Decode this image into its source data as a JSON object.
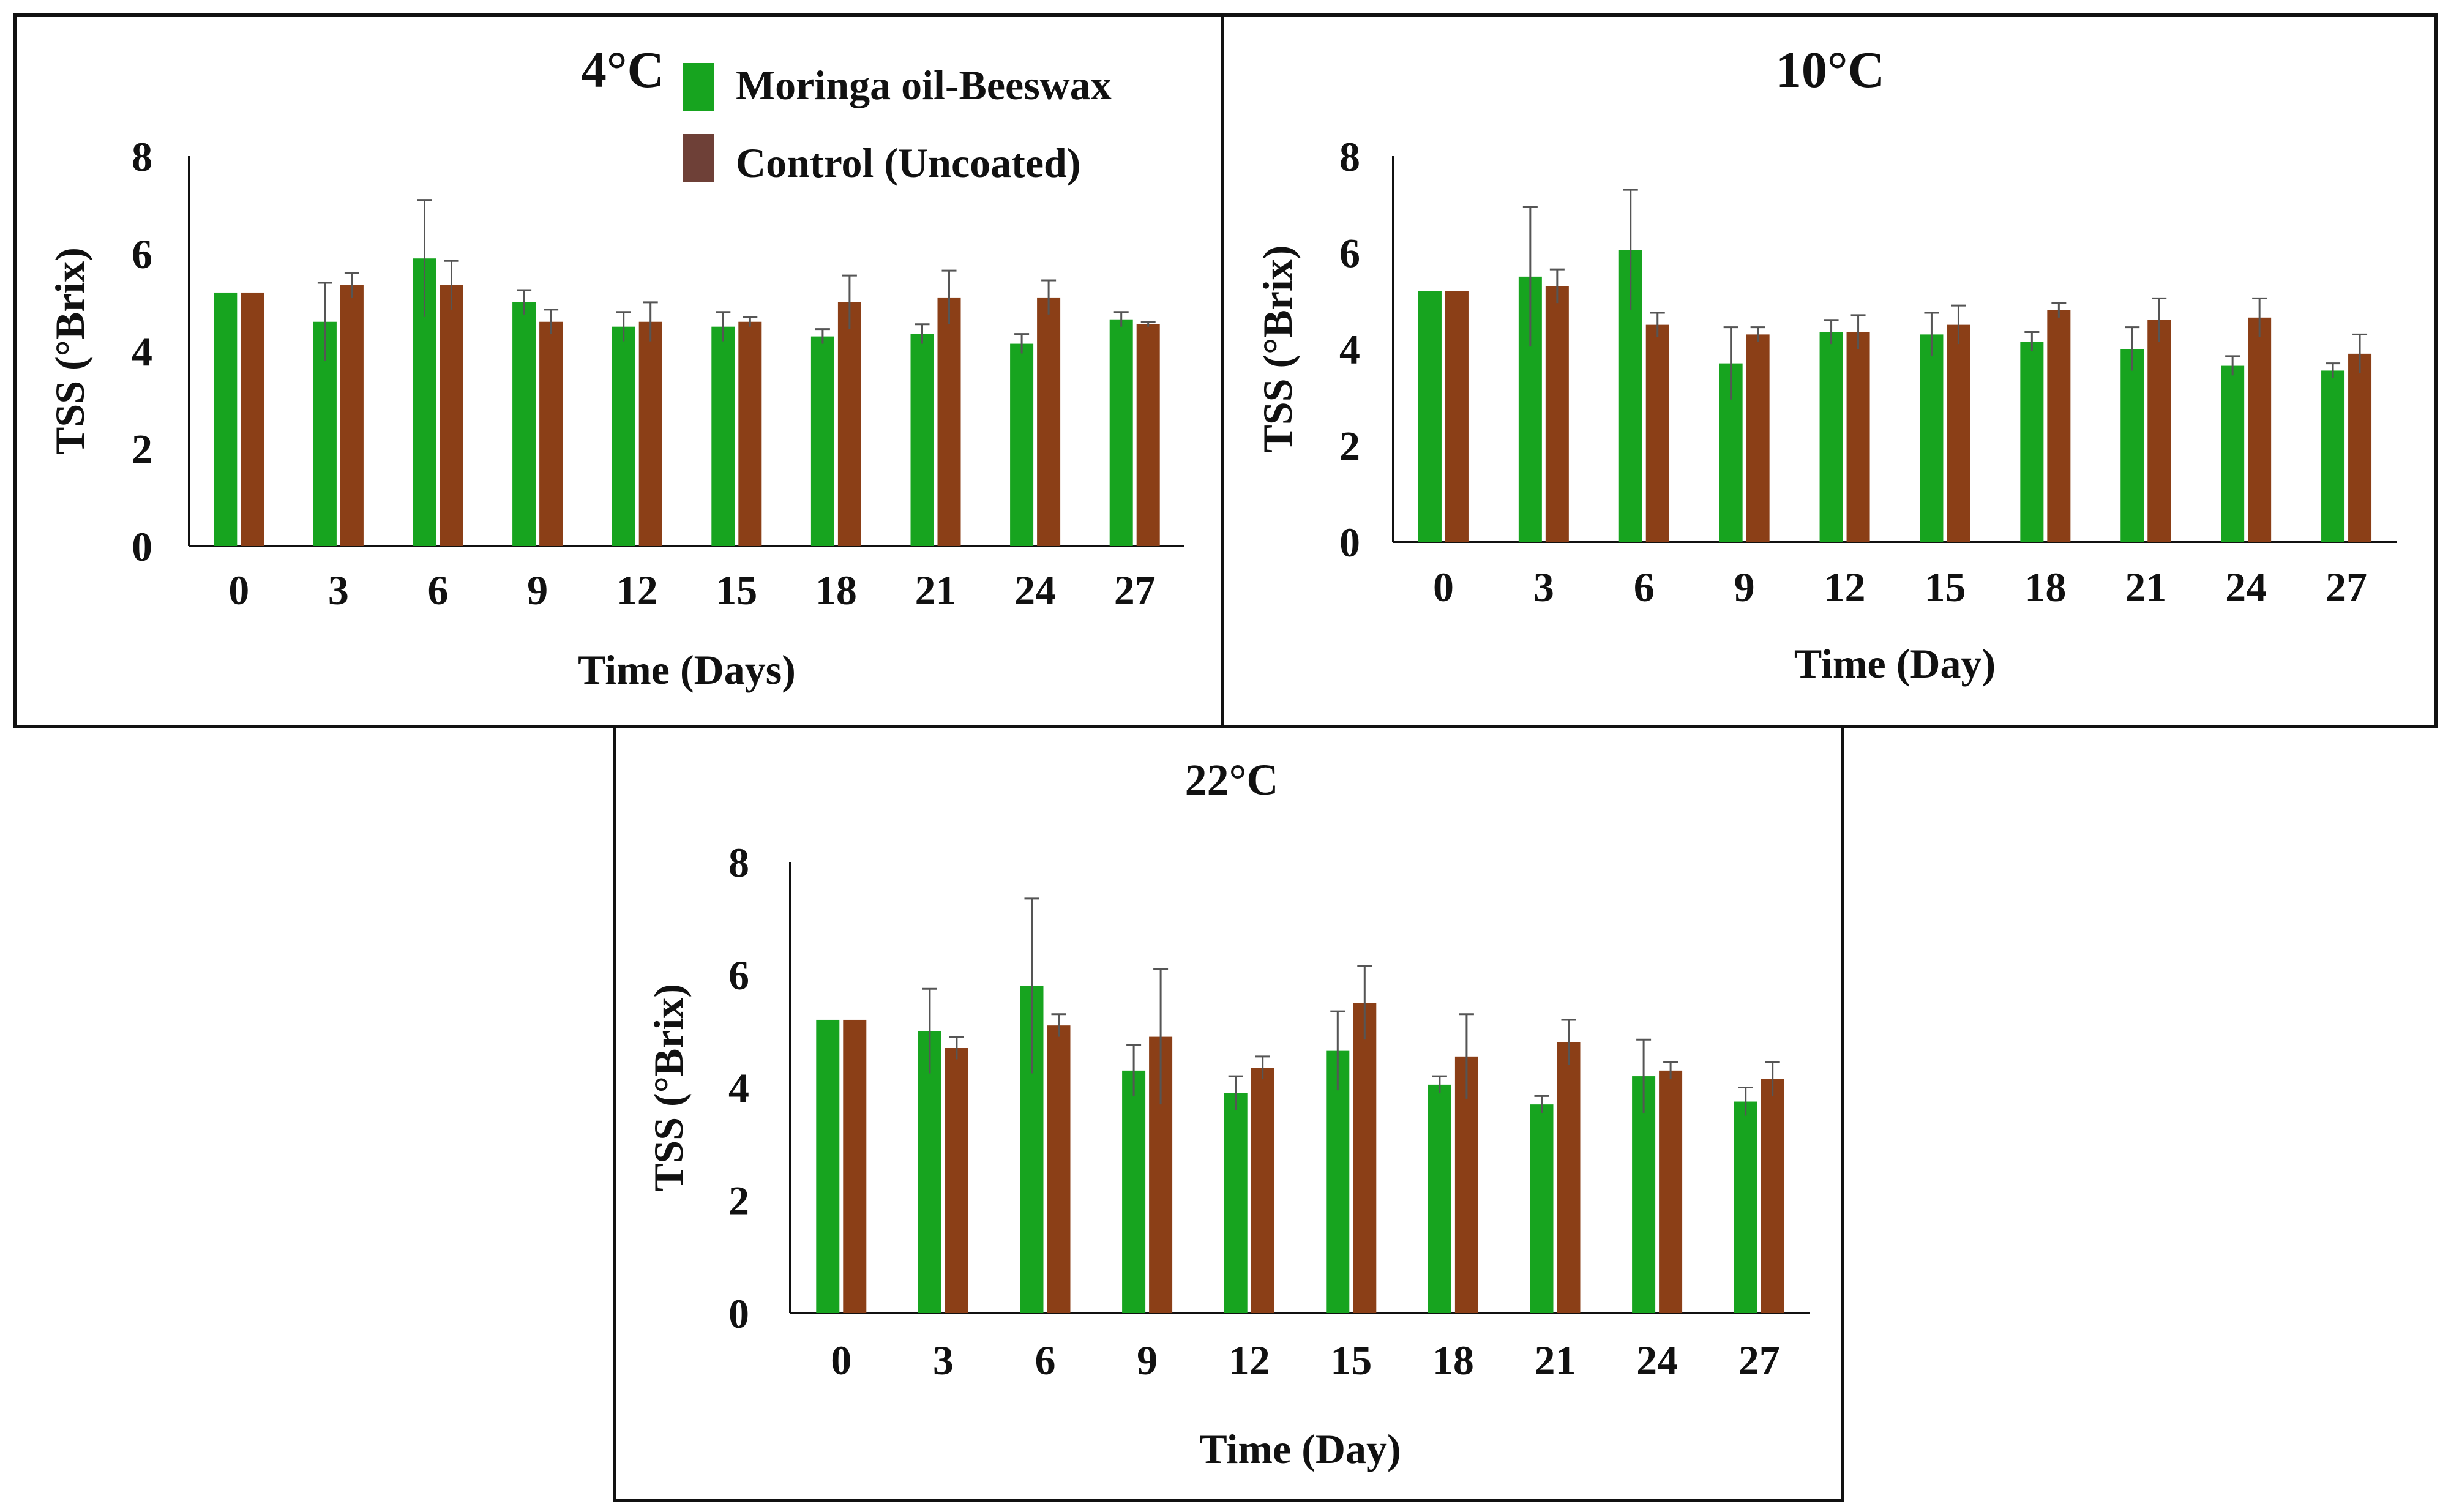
{
  "colors": {
    "coated": "#17a41f",
    "control": "#8b3f17",
    "legend_control": "#6e4037",
    "axis": "#111111",
    "error_bar": "#555555"
  },
  "legend": {
    "coated_label": "Moringa oil-Beeswax",
    "control_label": "Control (Uncoated)"
  },
  "chart_data": [
    {
      "type": "bar",
      "title": "4°C",
      "xlabel": "Time (Days)",
      "ylabel": "TSS (°Brix)",
      "ylim": [
        0,
        8
      ],
      "yticks": [
        "0",
        "2",
        "4",
        "6",
        "8"
      ],
      "categories": [
        "0",
        "3",
        "6",
        "9",
        "12",
        "15",
        "18",
        "21",
        "24",
        "27"
      ],
      "series": [
        {
          "name": "Moringa oil-Beeswax",
          "values": [
            5.2,
            4.6,
            5.9,
            5.0,
            4.5,
            4.5,
            4.3,
            4.35,
            4.15,
            4.65
          ],
          "errors": [
            0.0,
            0.8,
            1.2,
            0.25,
            0.3,
            0.3,
            0.15,
            0.2,
            0.2,
            0.15
          ]
        },
        {
          "name": "Control (Uncoated)",
          "values": [
            5.2,
            5.35,
            5.35,
            4.6,
            4.6,
            4.6,
            5.0,
            5.1,
            5.1,
            4.55
          ],
          "errors": [
            0.0,
            0.25,
            0.5,
            0.25,
            0.4,
            0.1,
            0.55,
            0.55,
            0.35,
            0.05
          ]
        }
      ]
    },
    {
      "type": "bar",
      "title": "10°C",
      "xlabel": "Time (Day)",
      "ylabel": "TSS (°Brix)",
      "ylim": [
        0,
        8
      ],
      "yticks": [
        "0",
        "2",
        "4",
        "6",
        "8"
      ],
      "categories": [
        "0",
        "3",
        "6",
        "9",
        "12",
        "15",
        "18",
        "21",
        "24",
        "27"
      ],
      "series": [
        {
          "name": "Moringa oil-Beeswax",
          "values": [
            5.2,
            5.5,
            6.05,
            3.7,
            4.35,
            4.3,
            4.15,
            4.0,
            3.65,
            3.55
          ],
          "errors": [
            0.0,
            1.45,
            1.25,
            0.75,
            0.25,
            0.45,
            0.2,
            0.45,
            0.2,
            0.15
          ]
        },
        {
          "name": "Control (Uncoated)",
          "values": [
            5.2,
            5.3,
            4.5,
            4.3,
            4.35,
            4.5,
            4.8,
            4.6,
            4.65,
            3.9
          ],
          "errors": [
            0.0,
            0.35,
            0.25,
            0.15,
            0.35,
            0.4,
            0.15,
            0.45,
            0.4,
            0.4
          ]
        }
      ]
    },
    {
      "type": "bar",
      "title": "22°C",
      "xlabel": "Time (Day)",
      "ylabel": "TSS (°Brix)",
      "ylim": [
        0,
        8
      ],
      "yticks": [
        "0",
        "2",
        "4",
        "6",
        "8"
      ],
      "categories": [
        "0",
        "3",
        "6",
        "9",
        "12",
        "15",
        "18",
        "21",
        "24",
        "27"
      ],
      "series": [
        {
          "name": "Moringa oil-Beeswax",
          "values": [
            5.2,
            5.0,
            5.8,
            4.3,
            3.9,
            4.65,
            4.05,
            3.7,
            4.2,
            3.75
          ],
          "errors": [
            0.0,
            0.75,
            1.55,
            0.45,
            0.3,
            0.7,
            0.15,
            0.15,
            0.65,
            0.25
          ]
        },
        {
          "name": "Control (Uncoated)",
          "values": [
            5.2,
            4.7,
            5.1,
            4.9,
            4.35,
            5.5,
            4.55,
            4.8,
            4.3,
            4.15
          ],
          "errors": [
            0.0,
            0.2,
            0.2,
            1.2,
            0.2,
            0.65,
            0.75,
            0.4,
            0.15,
            0.3
          ]
        }
      ]
    }
  ]
}
